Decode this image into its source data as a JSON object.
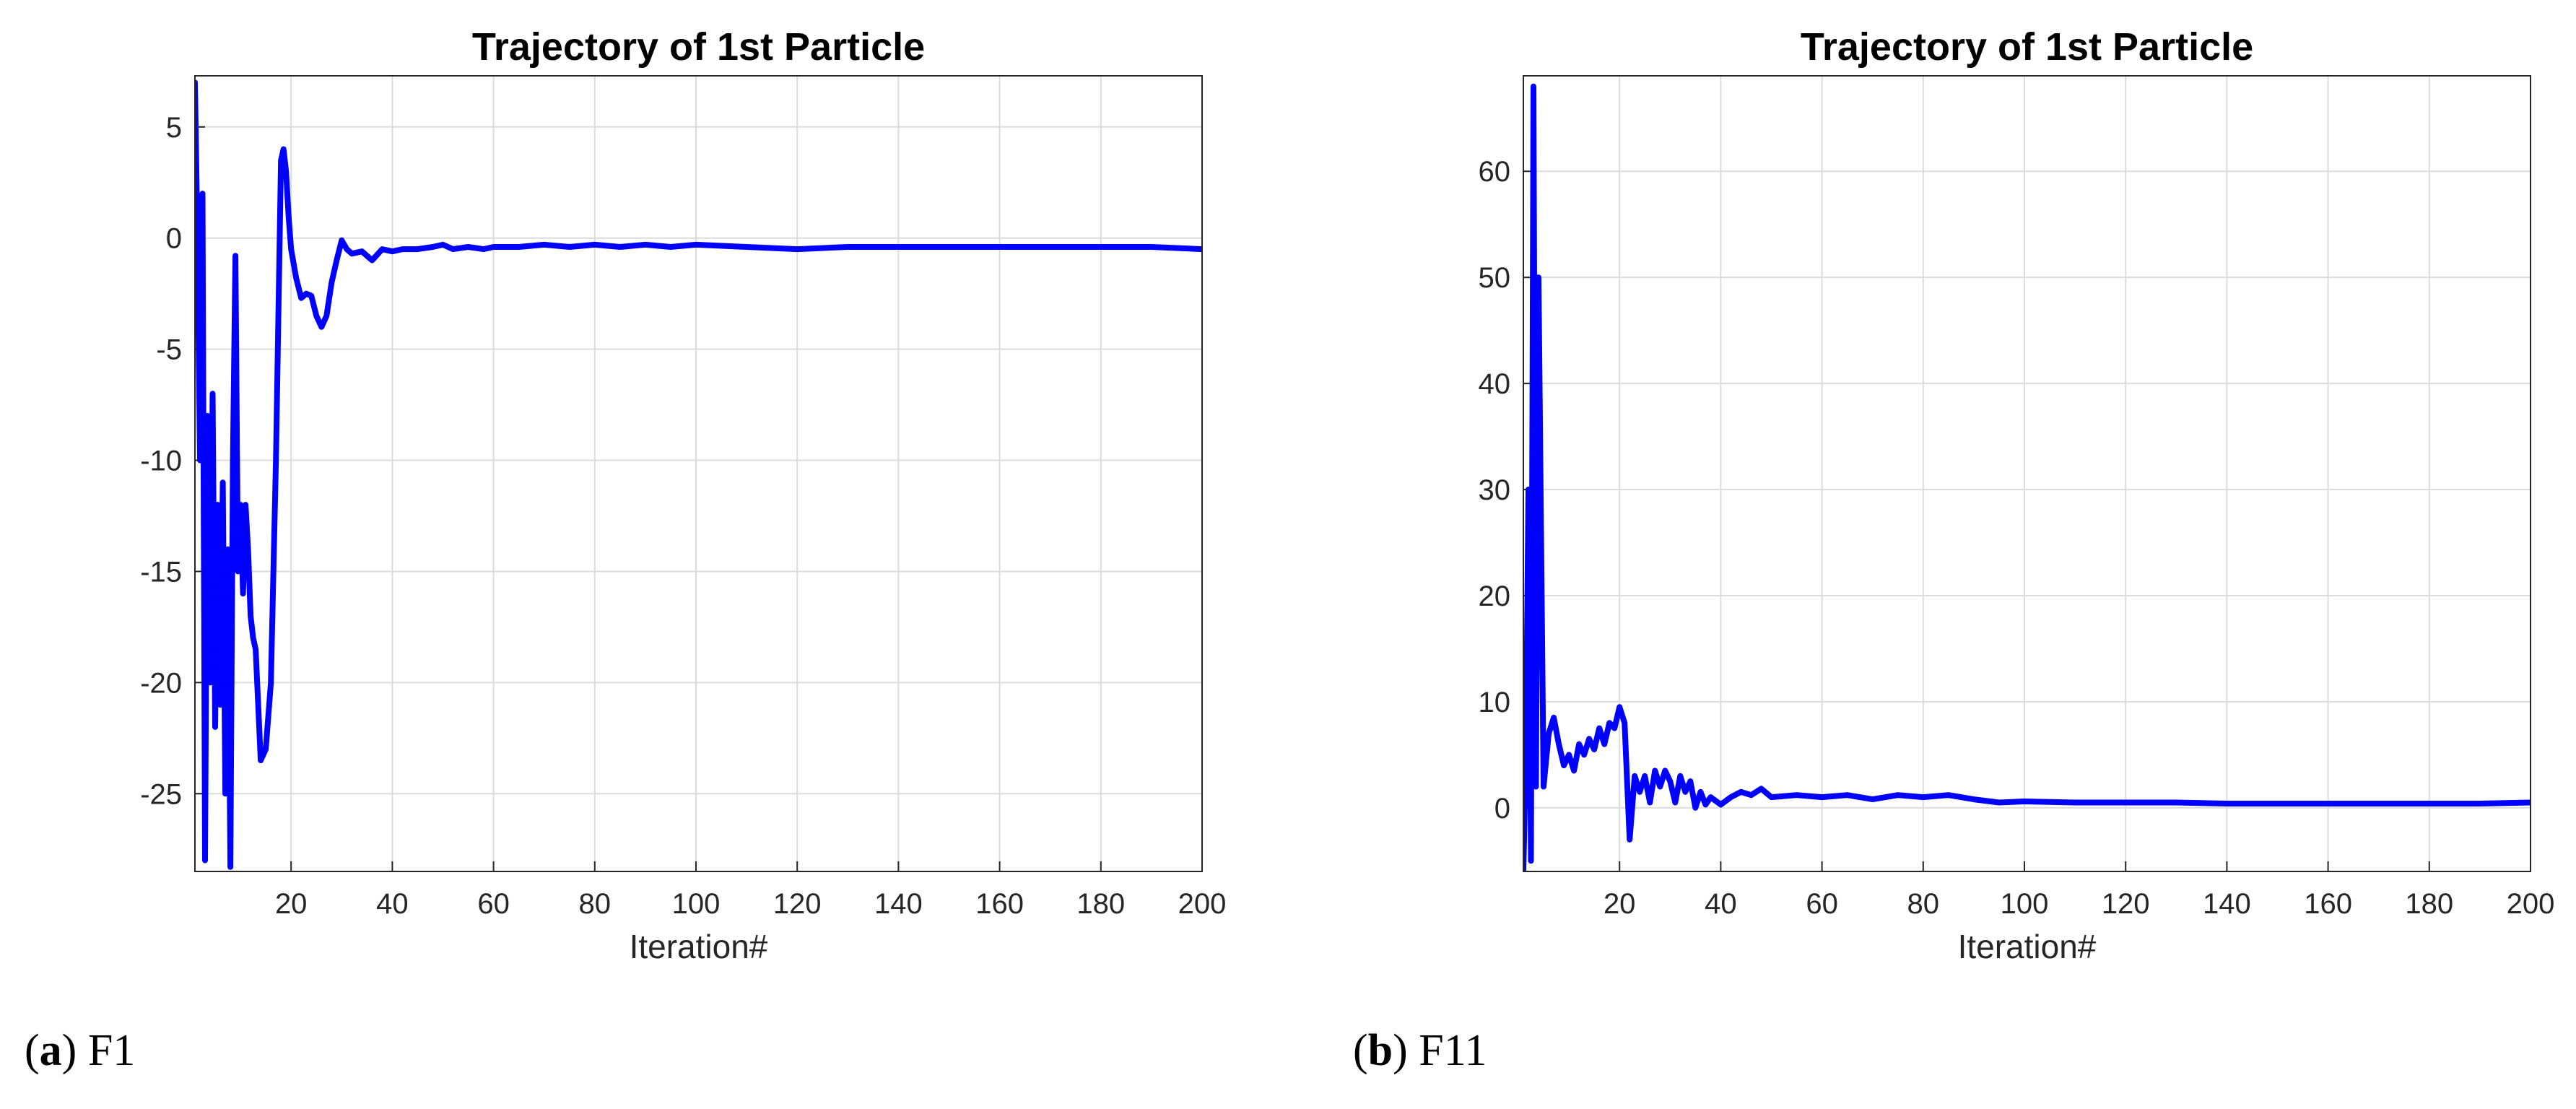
{
  "captions": [
    {
      "letter": "a",
      "label": "F1"
    },
    {
      "letter": "b",
      "label": "F11"
    }
  ],
  "chart_data": [
    {
      "type": "line",
      "title": "Trajectory of 1st Particle",
      "xlabel": "Iteration#",
      "ylabel": "",
      "xlim": [
        1,
        200
      ],
      "ylim": [
        -28.5,
        7.3
      ],
      "xticks": [
        20,
        40,
        60,
        80,
        100,
        120,
        140,
        160,
        180,
        200
      ],
      "yticks": [
        5,
        0,
        -5,
        -10,
        -15,
        -20,
        -25
      ],
      "grid": true,
      "line_color": "#0000ff",
      "series": [
        {
          "x": [
            1,
            1.5,
            2,
            2.5,
            3,
            3.5,
            4,
            4.5,
            5,
            5.5,
            6,
            6.5,
            7,
            7.5,
            8,
            8.5,
            9,
            9.5,
            10,
            10.5,
            11,
            11.5,
            12,
            12.5,
            13,
            13.5,
            14,
            15,
            16,
            17,
            18,
            18.5,
            19,
            19.5,
            20,
            21,
            22,
            23,
            24,
            25,
            26,
            27,
            28,
            29,
            30,
            31,
            32,
            34,
            36,
            38,
            40,
            42,
            45,
            48,
            50,
            52,
            55,
            58,
            60,
            65,
            70,
            75,
            80,
            85,
            90,
            95,
            100,
            110,
            120,
            130,
            140,
            150,
            160,
            170,
            180,
            190,
            200
          ],
          "y": [
            7.0,
            0,
            -10,
            2,
            -28,
            -8,
            -20,
            -7,
            -22,
            -12,
            -21,
            -11,
            -25,
            -14,
            -28.3,
            -10,
            -0.8,
            -15,
            -12,
            -16,
            -12,
            -14,
            -17,
            -18,
            -18.5,
            -21,
            -23.5,
            -23,
            -20,
            -10,
            3.5,
            4,
            3,
            1,
            -0.5,
            -1.8,
            -2.7,
            -2.5,
            -2.6,
            -3.5,
            -4.0,
            -3.5,
            -2.0,
            -1.0,
            -0.1,
            -0.5,
            -0.7,
            -0.6,
            -1.0,
            -0.5,
            -0.6,
            -0.5,
            -0.5,
            -0.4,
            -0.3,
            -0.5,
            -0.4,
            -0.5,
            -0.4,
            -0.4,
            -0.3,
            -0.4,
            -0.3,
            -0.4,
            -0.3,
            -0.4,
            -0.3,
            -0.4,
            -0.5,
            -0.4,
            -0.4,
            -0.4,
            -0.4,
            -0.4,
            -0.4,
            -0.4,
            -0.5
          ]
        }
      ]
    },
    {
      "type": "line",
      "title": "Trajectory of 1st Particle",
      "xlabel": "Iteration#",
      "ylabel": "",
      "xlim": [
        1,
        200
      ],
      "ylim": [
        -6,
        69
      ],
      "xticks": [
        20,
        40,
        60,
        80,
        100,
        120,
        140,
        160,
        180,
        200
      ],
      "yticks": [
        60,
        50,
        40,
        30,
        20,
        10,
        0
      ],
      "grid": true,
      "line_color": "#0000ff",
      "series": [
        {
          "x": [
            1,
            1.5,
            2,
            2.5,
            3,
            3.5,
            4,
            5,
            6,
            7,
            8,
            9,
            10,
            11,
            12,
            13,
            14,
            15,
            16,
            17,
            18,
            19,
            20,
            21,
            22,
            22.5,
            23,
            24,
            25,
            26,
            27,
            28,
            29,
            30,
            31,
            32,
            33,
            34,
            35,
            36,
            37,
            38,
            40,
            42,
            44,
            46,
            48,
            50,
            55,
            60,
            65,
            70,
            75,
            80,
            85,
            90,
            95,
            100,
            110,
            120,
            130,
            140,
            150,
            160,
            170,
            180,
            190,
            200
          ],
          "y": [
            -6,
            5,
            30,
            -5,
            68,
            2,
            50,
            2,
            7,
            8.5,
            6,
            4,
            5,
            3.5,
            6,
            5,
            6.5,
            5.5,
            7.5,
            6,
            8,
            7.5,
            9.5,
            8,
            -3,
            0,
            3,
            1.5,
            3,
            0.5,
            3.5,
            2,
            3.5,
            2.5,
            0.5,
            3,
            1.5,
            2.5,
            0,
            1.5,
            0.3,
            1,
            0.3,
            1,
            1.5,
            1.2,
            1.8,
            1,
            1.2,
            1,
            1.2,
            0.8,
            1.2,
            1,
            1.2,
            0.8,
            0.5,
            0.6,
            0.5,
            0.5,
            0.5,
            0.4,
            0.4,
            0.4,
            0.4,
            0.4,
            0.4,
            0.5
          ]
        }
      ]
    }
  ]
}
